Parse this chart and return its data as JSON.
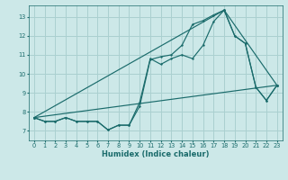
{
  "xlabel": "Humidex (Indice chaleur)",
  "background_color": "#cce8e8",
  "grid_color": "#aad0d0",
  "line_color": "#1a6b6b",
  "xlim": [
    -0.5,
    23.5
  ],
  "ylim": [
    6.5,
    13.6
  ],
  "xticks": [
    0,
    1,
    2,
    3,
    4,
    5,
    6,
    7,
    8,
    9,
    10,
    11,
    12,
    13,
    14,
    15,
    16,
    17,
    18,
    19,
    20,
    21,
    22,
    23
  ],
  "yticks": [
    7,
    8,
    9,
    10,
    11,
    12,
    13
  ],
  "line1_x": [
    0,
    1,
    2,
    3,
    4,
    5,
    6,
    7,
    8,
    9,
    10,
    11,
    12,
    13,
    14,
    15,
    16,
    17,
    18,
    19,
    20,
    21,
    22,
    23
  ],
  "line1_y": [
    7.7,
    7.5,
    7.5,
    7.7,
    7.5,
    7.5,
    7.5,
    7.05,
    7.3,
    7.3,
    8.5,
    10.8,
    10.5,
    10.8,
    11.0,
    10.8,
    11.5,
    12.75,
    13.35,
    12.0,
    11.6,
    9.3,
    8.6,
    9.4
  ],
  "line2_x": [
    0,
    1,
    2,
    3,
    4,
    5,
    6,
    7,
    8,
    9,
    10,
    11,
    12,
    13,
    14,
    15,
    16,
    17,
    18,
    19,
    20,
    21,
    22,
    23
  ],
  "line2_y": [
    7.7,
    7.5,
    7.5,
    7.7,
    7.5,
    7.5,
    7.5,
    7.05,
    7.3,
    7.3,
    8.3,
    10.75,
    10.9,
    11.0,
    11.5,
    12.6,
    12.8,
    13.1,
    13.35,
    12.0,
    11.6,
    9.3,
    8.6,
    9.4
  ],
  "line3_x": [
    0,
    23
  ],
  "line3_y": [
    7.7,
    9.4
  ],
  "line4_x": [
    0,
    18,
    23
  ],
  "line4_y": [
    7.7,
    13.35,
    9.4
  ]
}
